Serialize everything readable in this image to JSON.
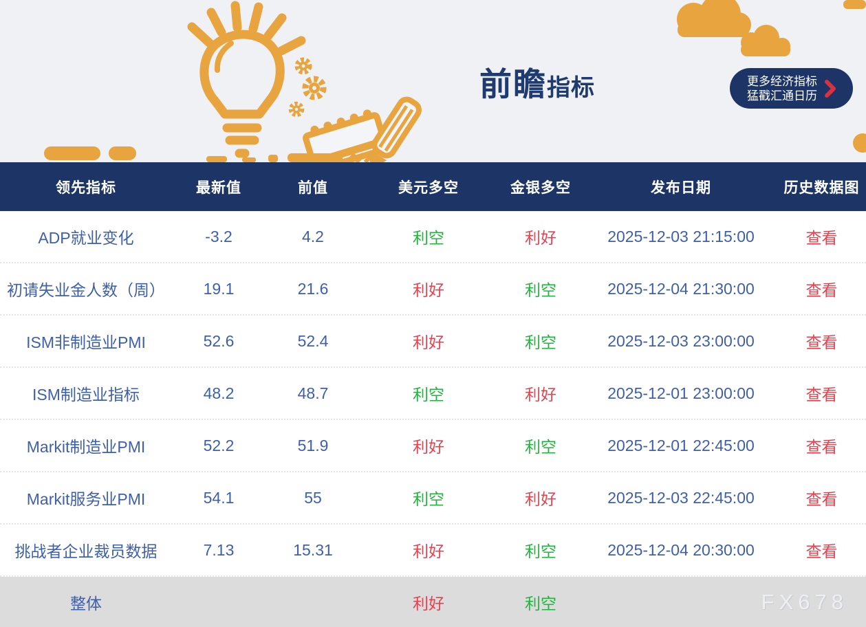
{
  "banner": {
    "title_main": "前瞻",
    "title_sub": "指标",
    "more_button": {
      "line1": "更多经济指标",
      "line2": "猛戳汇通日历",
      "chevron_icon": "chevron-right-icon"
    },
    "decoration_icons": [
      "lightbulb-icon",
      "gears-icon",
      "ruler-pencil-icon",
      "cloud-icon"
    ]
  },
  "table": {
    "columns": [
      "领先指标",
      "最新值",
      "前值",
      "美元多空",
      "金银多空",
      "发布日期",
      "历史数据图"
    ],
    "rows": [
      {
        "indicator": "ADP就业变化",
        "latest": "-3.2",
        "previous": "4.2",
        "usd": {
          "text": "利空",
          "tone": "green"
        },
        "gold": {
          "text": "利好",
          "tone": "red"
        },
        "date": "2025-12-03 21:15:00",
        "action": "查看"
      },
      {
        "indicator": "初请失业金人数（周）",
        "latest": "19.1",
        "previous": "21.6",
        "usd": {
          "text": "利好",
          "tone": "red"
        },
        "gold": {
          "text": "利空",
          "tone": "green"
        },
        "date": "2025-12-04 21:30:00",
        "action": "查看"
      },
      {
        "indicator": "ISM非制造业PMI",
        "latest": "52.6",
        "previous": "52.4",
        "usd": {
          "text": "利好",
          "tone": "red"
        },
        "gold": {
          "text": "利空",
          "tone": "green"
        },
        "date": "2025-12-03 23:00:00",
        "action": "查看"
      },
      {
        "indicator": "ISM制造业指标",
        "latest": "48.2",
        "previous": "48.7",
        "usd": {
          "text": "利空",
          "tone": "green"
        },
        "gold": {
          "text": "利好",
          "tone": "red"
        },
        "date": "2025-12-01 23:00:00",
        "action": "查看"
      },
      {
        "indicator": "Markit制造业PMI",
        "latest": "52.2",
        "previous": "51.9",
        "usd": {
          "text": "利好",
          "tone": "red"
        },
        "gold": {
          "text": "利空",
          "tone": "green"
        },
        "date": "2025-12-01 22:45:00",
        "action": "查看"
      },
      {
        "indicator": "Markit服务业PMI",
        "latest": "54.1",
        "previous": "55",
        "usd": {
          "text": "利空",
          "tone": "green"
        },
        "gold": {
          "text": "利好",
          "tone": "red"
        },
        "date": "2025-12-03 22:45:00",
        "action": "查看"
      },
      {
        "indicator": "挑战者企业裁员数据",
        "latest": "7.13",
        "previous": "15.31",
        "usd": {
          "text": "利好",
          "tone": "red"
        },
        "gold": {
          "text": "利空",
          "tone": "green"
        },
        "date": "2025-12-04 20:30:00",
        "action": "查看"
      }
    ],
    "footer": {
      "label": "整体",
      "usd": {
        "text": "利好",
        "tone": "red"
      },
      "gold": {
        "text": "利空",
        "tone": "green"
      },
      "watermark": "FX678"
    }
  },
  "colors": {
    "accent_orange": "#E8A43E",
    "navy": "#1D3466",
    "title_navy": "#1E3A6E",
    "banner_bg": "#EFF1F5",
    "row_blue": "#3E5FAE",
    "bullish_red": "#E8414E",
    "bearish_green": "#1EB53A",
    "view_red": "#E8414E",
    "chevron_red": "#D8323F",
    "footer_bg": "#DCDCDC",
    "watermark_gray": "#EDEFF3"
  }
}
